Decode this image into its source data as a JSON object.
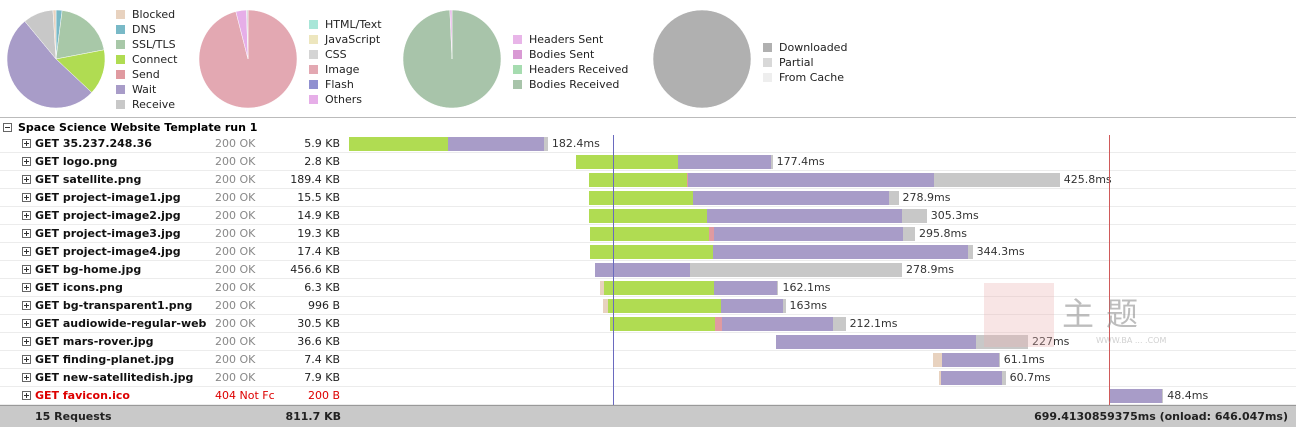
{
  "colors": {
    "blocked": "#e8d2bf",
    "dns": "#79b9c7",
    "ssl": "#a8c8a8",
    "connect": "#b0dc52",
    "send": "#e09aa0",
    "wait": "#a89cc8",
    "receive": "#c8c8c8",
    "html": "#a8e6d8",
    "js": "#ede6be",
    "css": "#d4d4d4",
    "image": "#e3a8b2",
    "flash": "#9090d0",
    "others": "#e6aee8",
    "headers_sent": "#e8b5e8",
    "bodies_sent": "#d99ad4",
    "headers_received": "#a6dcb0",
    "bodies_received": "#a8c4aa",
    "downloaded": "#b0b0b0",
    "partial": "#d8d8d8",
    "from_cache": "#eeeeee",
    "onload_line": "#d05a5a",
    "domready_line": "#6a6abf"
  },
  "pies": [
    {
      "name": "timings",
      "legend": [
        {
          "label": "Blocked",
          "color": "blocked"
        },
        {
          "label": "DNS",
          "color": "dns"
        },
        {
          "label": "SSL/TLS",
          "color": "ssl"
        },
        {
          "label": "Connect",
          "color": "connect"
        },
        {
          "label": "Send",
          "color": "send"
        },
        {
          "label": "Wait",
          "color": "wait"
        },
        {
          "label": "Receive",
          "color": "receive"
        }
      ],
      "slices": [
        {
          "color": "dns",
          "value": 2
        },
        {
          "color": "ssl",
          "value": 20
        },
        {
          "color": "connect",
          "value": 15
        },
        {
          "color": "wait",
          "value": 52
        },
        {
          "color": "receive",
          "value": 10
        },
        {
          "color": "blocked",
          "value": 1
        }
      ]
    },
    {
      "name": "content-types",
      "legend": [
        {
          "label": "HTML/Text",
          "color": "html"
        },
        {
          "label": "JavaScript",
          "color": "js"
        },
        {
          "label": "CSS",
          "color": "css"
        },
        {
          "label": "Image",
          "color": "image"
        },
        {
          "label": "Flash",
          "color": "flash"
        },
        {
          "label": "Others",
          "color": "others"
        }
      ],
      "slices": [
        {
          "color": "image",
          "value": 96
        },
        {
          "color": "others",
          "value": 3.5
        },
        {
          "color": "css",
          "value": 0.5
        }
      ]
    },
    {
      "name": "traffic",
      "legend": [
        {
          "label": "Headers Sent",
          "color": "headers_sent"
        },
        {
          "label": "Bodies Sent",
          "color": "bodies_sent"
        },
        {
          "label": "Headers Received",
          "color": "headers_received"
        },
        {
          "label": "Bodies Received",
          "color": "bodies_received"
        }
      ],
      "slices": [
        {
          "color": "bodies_received",
          "value": 99.3
        },
        {
          "color": "headers_sent",
          "value": 0.7
        }
      ]
    },
    {
      "name": "cache",
      "legend": [
        {
          "label": "Downloaded",
          "color": "downloaded"
        },
        {
          "label": "Partial",
          "color": "partial"
        },
        {
          "label": "From Cache",
          "color": "from_cache"
        }
      ],
      "slices": [
        {
          "color": "downloaded",
          "value": 100
        }
      ]
    }
  ],
  "group": {
    "title": "Space Science Website Template run 1"
  },
  "timeline": {
    "total_ms": 699.41,
    "domready_ms": 224,
    "onload_ms": 646.047
  },
  "requests": [
    {
      "url": "GET 35.237.248.36",
      "status": "200 OK",
      "size": "5.9 KB",
      "time": "182.4ms",
      "start": 0,
      "phases": {
        "connect": 84,
        "wait": 82,
        "receive": 3
      },
      "error": false
    },
    {
      "url": "GET logo.png",
      "status": "200 OK",
      "size": "2.8 KB",
      "time": "177.4ms",
      "start": 193,
      "phases": {
        "connect": 87,
        "wait": 79,
        "receive": 1
      },
      "error": false
    },
    {
      "url": "GET satellite.png",
      "status": "200 OK",
      "size": "189.4 KB",
      "time": "425.8ms",
      "start": 204,
      "phases": {
        "connect": 83,
        "send": 1,
        "wait": 209,
        "receive": 107
      },
      "error": false
    },
    {
      "url": "GET project-image1.jpg",
      "status": "200 OK",
      "size": "15.5 KB",
      "time": "278.9ms",
      "start": 204,
      "phases": {
        "connect": 88,
        "wait": 167,
        "receive": 8
      },
      "error": false
    },
    {
      "url": "GET project-image2.jpg",
      "status": "200 OK",
      "size": "14.9 KB",
      "time": "305.3ms",
      "start": 204,
      "phases": {
        "connect": 100,
        "wait": 166,
        "receive": 21
      },
      "error": false
    },
    {
      "url": "GET project-image3.jpg",
      "status": "200 OK",
      "size": "19.3 KB",
      "time": "295.8ms",
      "start": 205,
      "phases": {
        "connect": 101,
        "send": 4,
        "wait": 161,
        "receive": 10
      },
      "error": false
    },
    {
      "url": "GET project-image4.jpg",
      "status": "200 OK",
      "size": "17.4 KB",
      "time": "344.3ms",
      "start": 205,
      "phases": {
        "connect": 104,
        "wait": 217,
        "receive": 4
      },
      "error": false
    },
    {
      "url": "GET bg-home.jpg",
      "status": "200 OK",
      "size": "456.6 KB",
      "time": "278.9ms",
      "start": 209,
      "phases": {
        "wait": 81,
        "receive": 180
      },
      "error": false
    },
    {
      "url": "GET icons.png",
      "status": "200 OK",
      "size": "6.3 KB",
      "time": "162.1ms",
      "start": 213,
      "phases": {
        "blocked": 4,
        "connect": 93,
        "wait": 54,
        "receive": 1
      },
      "error": false
    },
    {
      "url": "GET bg-transparent1.png",
      "status": "200 OK",
      "size": "996 B",
      "time": "163ms",
      "start": 216,
      "phases": {
        "blocked": 4,
        "connect": 96,
        "wait": 53,
        "receive": 2
      },
      "error": false
    },
    {
      "url": "GET audiowide-regular-web",
      "status": "200 OK",
      "size": "30.5 KB",
      "time": "212.1ms",
      "start": 222,
      "phases": {
        "connect": 89,
        "send": 6,
        "wait": 94,
        "receive": 11
      },
      "error": false
    },
    {
      "url": "GET mars-rover.jpg",
      "status": "200 OK",
      "size": "36.6 KB",
      "time": "227ms",
      "start": 363,
      "phases": {
        "wait": 170,
        "receive": 44
      },
      "error": false
    },
    {
      "url": "GET finding-planet.jpg",
      "status": "200 OK",
      "size": "7.4 KB",
      "time": "61.1ms",
      "start": 496,
      "phases": {
        "blocked": 8,
        "wait": 48,
        "receive": 1
      },
      "error": false
    },
    {
      "url": "GET new-satellitedish.jpg",
      "status": "200 OK",
      "size": "7.9 KB",
      "time": "60.7ms",
      "start": 501,
      "phases": {
        "blocked": 2,
        "wait": 52,
        "receive": 3
      },
      "error": false
    },
    {
      "url": "GET favicon.ico",
      "status": "404 Not Fc",
      "size": "200 B",
      "time": "48.4ms",
      "start": 647,
      "phases": {
        "wait": 44,
        "receive": 1
      },
      "error": true
    }
  ],
  "footer": {
    "requests": "15 Requests",
    "total_size": "811.7 KB",
    "total_time": "699.4130859375ms (onload: 646.047ms)"
  },
  "watermark": {
    "text": "主题",
    "sub": "WWW.BA ... .COM"
  }
}
